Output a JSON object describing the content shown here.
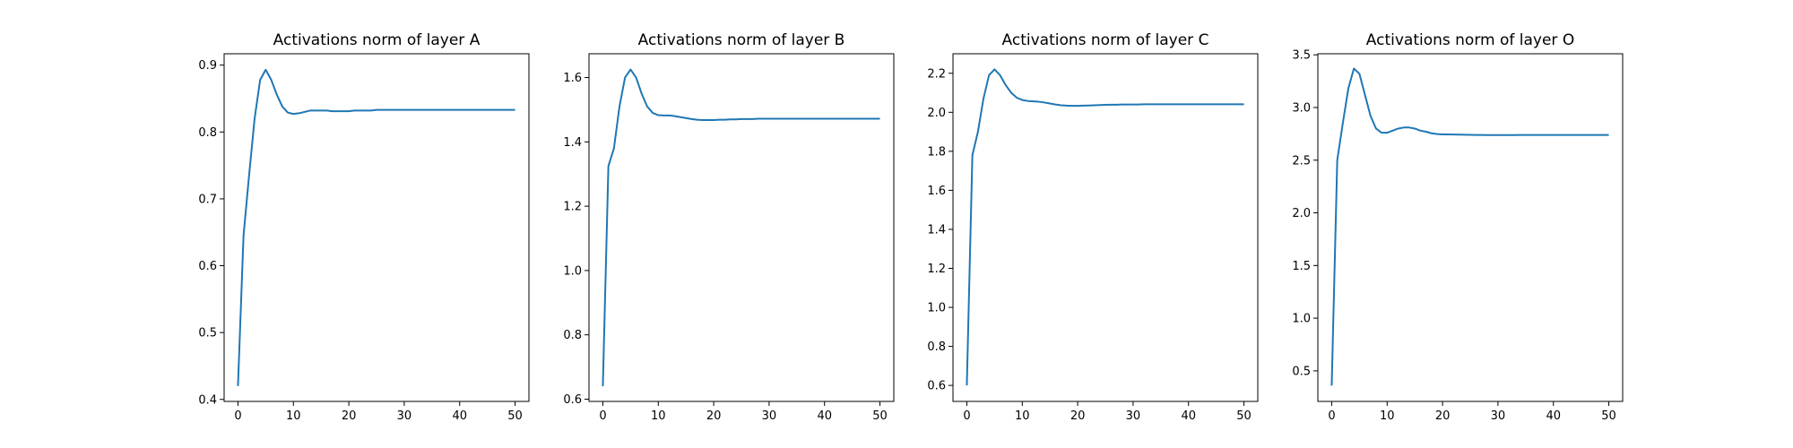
{
  "chart_data": [
    {
      "type": "line",
      "title": "Activations norm of layer A",
      "xlabel": "",
      "ylabel": "",
      "xlim": [
        -2.5,
        52.5
      ],
      "ylim": [
        0.397,
        0.917
      ],
      "xticks": [
        0,
        10,
        20,
        30,
        40,
        50
      ],
      "xtick_labels": [
        "0",
        "10",
        "20",
        "30",
        "40",
        "50"
      ],
      "yticks": [
        0.4,
        0.5,
        0.6,
        0.7,
        0.8,
        0.9
      ],
      "ytick_labels": [
        "0.4",
        "0.5",
        "0.6",
        "0.7",
        "0.8",
        "0.9"
      ],
      "grid": false,
      "color": "#1f77b4",
      "x": [
        0,
        1,
        2,
        3,
        4,
        5,
        6,
        7,
        8,
        9,
        10,
        11,
        12,
        13,
        14,
        15,
        16,
        17,
        18,
        19,
        20,
        21,
        22,
        23,
        24,
        25,
        26,
        27,
        28,
        29,
        30,
        31,
        32,
        33,
        34,
        35,
        36,
        37,
        38,
        39,
        40,
        41,
        42,
        43,
        44,
        45,
        46,
        47,
        48,
        49,
        50
      ],
      "y": [
        0.42,
        0.645,
        0.735,
        0.82,
        0.878,
        0.893,
        0.878,
        0.856,
        0.838,
        0.829,
        0.827,
        0.828,
        0.83,
        0.832,
        0.832,
        0.832,
        0.832,
        0.831,
        0.831,
        0.831,
        0.831,
        0.832,
        0.832,
        0.832,
        0.832,
        0.833,
        0.833,
        0.833,
        0.833,
        0.833,
        0.833,
        0.833,
        0.833,
        0.833,
        0.833,
        0.833,
        0.833,
        0.833,
        0.833,
        0.833,
        0.833,
        0.833,
        0.833,
        0.833,
        0.833,
        0.833,
        0.833,
        0.833,
        0.833,
        0.833,
        0.833
      ]
    },
    {
      "type": "line",
      "title": "Activations norm of layer B",
      "xlabel": "",
      "ylabel": "",
      "xlim": [
        -2.5,
        52.5
      ],
      "ylim": [
        0.593,
        1.674
      ],
      "xticks": [
        0,
        10,
        20,
        30,
        40,
        50
      ],
      "xtick_labels": [
        "0",
        "10",
        "20",
        "30",
        "40",
        "50"
      ],
      "yticks": [
        0.6,
        0.8,
        1.0,
        1.2,
        1.4,
        1.6
      ],
      "ytick_labels": [
        "0.6",
        "0.8",
        "1.0",
        "1.2",
        "1.4",
        "1.6"
      ],
      "grid": false,
      "color": "#1f77b4",
      "x": [
        0,
        1,
        2,
        3,
        4,
        5,
        6,
        7,
        8,
        9,
        10,
        11,
        12,
        13,
        14,
        15,
        16,
        17,
        18,
        19,
        20,
        21,
        22,
        23,
        24,
        25,
        26,
        27,
        28,
        29,
        30,
        31,
        32,
        33,
        34,
        35,
        36,
        37,
        38,
        39,
        40,
        41,
        42,
        43,
        44,
        45,
        46,
        47,
        48,
        49,
        50
      ],
      "y": [
        0.64,
        1.325,
        1.38,
        1.51,
        1.6,
        1.625,
        1.6,
        1.55,
        1.51,
        1.49,
        1.483,
        1.482,
        1.482,
        1.48,
        1.477,
        1.474,
        1.471,
        1.469,
        1.468,
        1.468,
        1.468,
        1.469,
        1.469,
        1.47,
        1.47,
        1.471,
        1.471,
        1.471,
        1.472,
        1.472,
        1.472,
        1.472,
        1.472,
        1.472,
        1.472,
        1.472,
        1.472,
        1.472,
        1.472,
        1.472,
        1.472,
        1.472,
        1.472,
        1.472,
        1.472,
        1.472,
        1.472,
        1.472,
        1.472,
        1.472,
        1.472
      ]
    },
    {
      "type": "line",
      "title": "Activations norm of layer C",
      "xlabel": "",
      "ylabel": "",
      "xlim": [
        -2.5,
        52.5
      ],
      "ylim": [
        0.518,
        2.3
      ],
      "xticks": [
        0,
        10,
        20,
        30,
        40,
        50
      ],
      "xtick_labels": [
        "0",
        "10",
        "20",
        "30",
        "40",
        "50"
      ],
      "yticks": [
        0.6,
        0.8,
        1.0,
        1.2,
        1.4,
        1.6,
        1.8,
        2.0,
        2.2
      ],
      "ytick_labels": [
        "0.6",
        "0.8",
        "1.0",
        "1.2",
        "1.4",
        "1.6",
        "1.8",
        "2.0",
        "2.2"
      ],
      "grid": false,
      "color": "#1f77b4",
      "x": [
        0,
        1,
        2,
        3,
        4,
        5,
        6,
        7,
        8,
        9,
        10,
        11,
        12,
        13,
        14,
        15,
        16,
        17,
        18,
        19,
        20,
        21,
        22,
        23,
        24,
        25,
        26,
        27,
        28,
        29,
        30,
        31,
        32,
        33,
        34,
        35,
        36,
        37,
        38,
        39,
        40,
        41,
        42,
        43,
        44,
        45,
        46,
        47,
        48,
        49,
        50
      ],
      "y": [
        0.6,
        1.78,
        1.9,
        2.07,
        2.19,
        2.22,
        2.19,
        2.14,
        2.1,
        2.075,
        2.063,
        2.058,
        2.056,
        2.054,
        2.05,
        2.045,
        2.04,
        2.036,
        2.034,
        2.033,
        2.033,
        2.034,
        2.035,
        2.036,
        2.037,
        2.038,
        2.039,
        2.039,
        2.04,
        2.04,
        2.04,
        2.04,
        2.041,
        2.041,
        2.041,
        2.041,
        2.041,
        2.041,
        2.041,
        2.041,
        2.041,
        2.041,
        2.041,
        2.041,
        2.041,
        2.041,
        2.041,
        2.041,
        2.041,
        2.041,
        2.041
      ]
    },
    {
      "type": "line",
      "title": "Activations norm of layer O",
      "xlabel": "",
      "ylabel": "",
      "xlim": [
        -2.5,
        52.5
      ],
      "ylim": [
        0.21,
        3.51
      ],
      "xticks": [
        0,
        10,
        20,
        30,
        40,
        50
      ],
      "xtick_labels": [
        "0",
        "10",
        "20",
        "30",
        "40",
        "50"
      ],
      "yticks": [
        0.5,
        1.0,
        1.5,
        2.0,
        2.5,
        3.0,
        3.5
      ],
      "ytick_labels": [
        "0.5",
        "1.0",
        "1.5",
        "2.0",
        "2.5",
        "3.0",
        "3.5"
      ],
      "grid": false,
      "color": "#1f77b4",
      "x": [
        0,
        1,
        2,
        3,
        4,
        5,
        6,
        7,
        8,
        9,
        10,
        11,
        12,
        13,
        14,
        15,
        16,
        17,
        18,
        19,
        20,
        21,
        22,
        23,
        24,
        25,
        26,
        27,
        28,
        29,
        30,
        31,
        32,
        33,
        34,
        35,
        36,
        37,
        38,
        39,
        40,
        41,
        42,
        43,
        44,
        45,
        46,
        47,
        48,
        49,
        50
      ],
      "y": [
        0.36,
        2.5,
        2.85,
        3.18,
        3.37,
        3.32,
        3.12,
        2.92,
        2.8,
        2.76,
        2.76,
        2.78,
        2.8,
        2.81,
        2.81,
        2.8,
        2.78,
        2.77,
        2.755,
        2.748,
        2.745,
        2.744,
        2.743,
        2.742,
        2.741,
        2.74,
        2.739,
        2.739,
        2.738,
        2.738,
        2.738,
        2.738,
        2.738,
        2.738,
        2.739,
        2.739,
        2.739,
        2.739,
        2.739,
        2.739,
        2.739,
        2.739,
        2.739,
        2.739,
        2.739,
        2.739,
        2.739,
        2.739,
        2.739,
        2.739,
        2.739
      ]
    }
  ]
}
